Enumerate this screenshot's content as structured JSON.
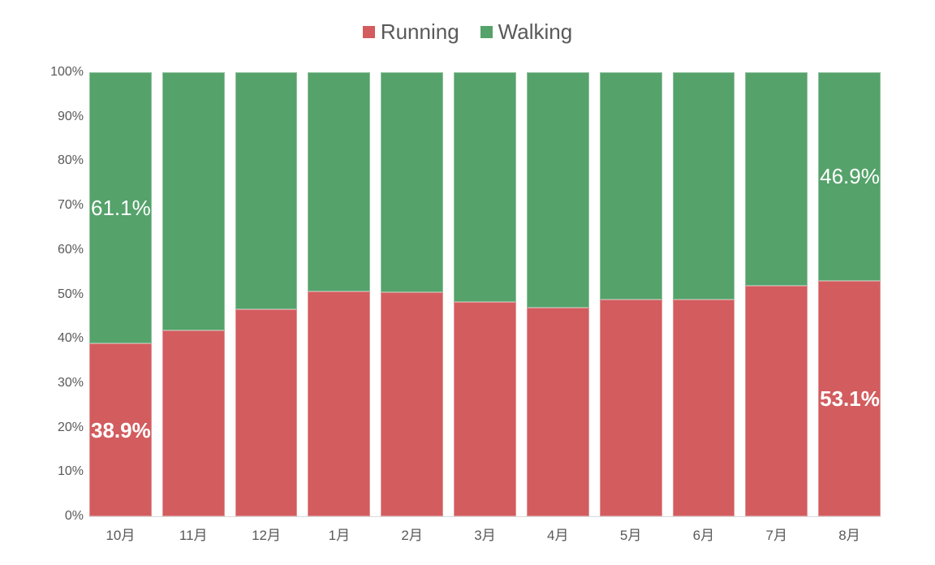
{
  "chart_data": {
    "type": "bar",
    "stacked": true,
    "percent": true,
    "categories": [
      "10月",
      "11月",
      "12月",
      "1月",
      "2月",
      "3月",
      "4月",
      "5月",
      "6月",
      "7月",
      "8月"
    ],
    "series": [
      {
        "name": "Running",
        "color": "#d25c5e",
        "values": [
          38.9,
          41.9,
          46.6,
          50.6,
          50.5,
          48.2,
          47.0,
          48.8,
          48.8,
          51.9,
          53.1
        ]
      },
      {
        "name": "Walking",
        "color": "#55a26b",
        "values": [
          61.1,
          58.1,
          53.4,
          49.4,
          49.5,
          51.8,
          53.0,
          51.2,
          51.2,
          48.1,
          46.9
        ]
      }
    ],
    "y_ticks": [
      "0%",
      "10%",
      "20%",
      "30%",
      "40%",
      "50%",
      "60%",
      "70%",
      "80%",
      "90%",
      "100%"
    ],
    "ylim": [
      0,
      100
    ],
    "grid": false,
    "legend_position": "top",
    "annotations": [
      {
        "category": "10月",
        "series": "Walking",
        "text": "61.1%",
        "bold": false
      },
      {
        "category": "10月",
        "series": "Running",
        "text": "38.9%",
        "bold": true
      },
      {
        "category": "8月",
        "series": "Walking",
        "text": "46.9%",
        "bold": false
      },
      {
        "category": "8月",
        "series": "Running",
        "text": "53.1%",
        "bold": true
      }
    ]
  },
  "colors": {
    "background": "#ffffff",
    "axis_text": "#595959",
    "legend_text": "#595959",
    "baseline": "#d9d9d9",
    "data_label_text": "#ffffff"
  }
}
